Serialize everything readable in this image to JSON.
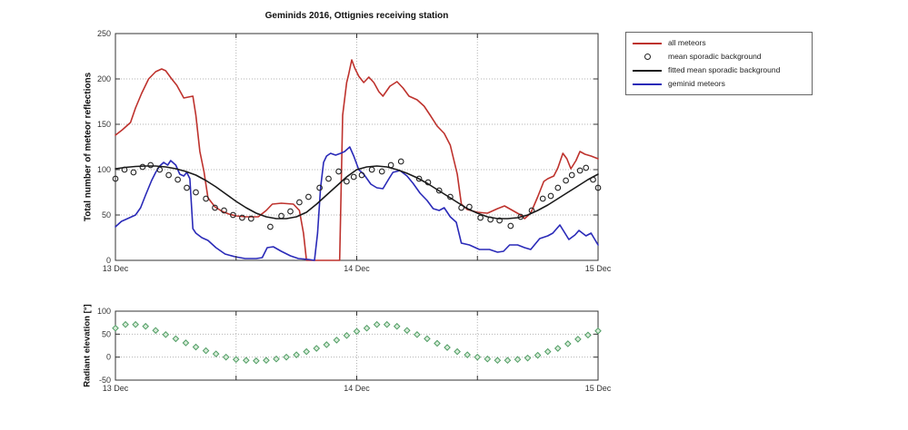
{
  "legend": {
    "items": [
      {
        "label": "all meteors",
        "type": "line",
        "color": "#be322d"
      },
      {
        "label": "mean sporadic background",
        "type": "circle",
        "color": "#222222"
      },
      {
        "label": "fitted mean sporadic background",
        "type": "line",
        "color": "#1a1a1a"
      },
      {
        "label": "geminid meteors",
        "type": "line",
        "color": "#2a2ab8"
      }
    ]
  },
  "chart_data": [
    {
      "id": "main",
      "type": "line",
      "title": "Geminids 2016, Ottignies receiving station",
      "ylabel": "Total number of meteor reflections",
      "xlabel": "",
      "x_unit": "hours since 13 Dec 00:00",
      "xlim_hours": [
        0,
        48
      ],
      "ylim": [
        0,
        250
      ],
      "yticks": [
        0,
        50,
        100,
        150,
        200,
        250
      ],
      "xticks": [
        {
          "h": 0,
          "label": "13 Dec"
        },
        {
          "h": 12,
          "label": ""
        },
        {
          "h": 24,
          "label": "14 Dec"
        },
        {
          "h": 36,
          "label": ""
        },
        {
          "h": 48,
          "label": "15 Dec"
        }
      ],
      "grid": true,
      "legend_position": "outside-right",
      "series": [
        {
          "name": "all meteors",
          "style": "line",
          "color": "#be322d",
          "points": [
            [
              0,
              138
            ],
            [
              0.7,
              144
            ],
            [
              1.5,
              152
            ],
            [
              2,
              168
            ],
            [
              2.6,
              184
            ],
            [
              3.3,
              200
            ],
            [
              4,
              208
            ],
            [
              4.6,
              211
            ],
            [
              5,
              209
            ],
            [
              5.6,
              200
            ],
            [
              6.1,
              193
            ],
            [
              6.8,
              179
            ],
            [
              7.7,
              181
            ],
            [
              8,
              160
            ],
            [
              8.4,
              120
            ],
            [
              8.8,
              98
            ],
            [
              9.2,
              69
            ],
            [
              9.9,
              59
            ],
            [
              10.6,
              54
            ],
            [
              11.3,
              51
            ],
            [
              12,
              49
            ],
            [
              13,
              48
            ],
            [
              14.2,
              48
            ],
            [
              15,
              55
            ],
            [
              15.6,
              62
            ],
            [
              16.5,
              63
            ],
            [
              17.7,
              62
            ],
            [
              18.3,
              55
            ],
            [
              18.7,
              30
            ],
            [
              19,
              0
            ],
            [
              22.3,
              0
            ],
            [
              22.6,
              160
            ],
            [
              23,
              196
            ],
            [
              23.2,
              205
            ],
            [
              23.5,
              221
            ],
            [
              23.8,
              212
            ],
            [
              24.2,
              203
            ],
            [
              24.7,
              196
            ],
            [
              25.2,
              202
            ],
            [
              25.7,
              196
            ],
            [
              26.2,
              186
            ],
            [
              26.6,
              181
            ],
            [
              27.3,
              192
            ],
            [
              28,
              197
            ],
            [
              28.6,
              190
            ],
            [
              29.2,
              181
            ],
            [
              30,
              177
            ],
            [
              30.7,
              170
            ],
            [
              31.3,
              160
            ],
            [
              32,
              148
            ],
            [
              32.7,
              140
            ],
            [
              33.3,
              127
            ],
            [
              34,
              95
            ],
            [
              34.4,
              62
            ],
            [
              35,
              56
            ],
            [
              36,
              53
            ],
            [
              37,
              52
            ],
            [
              38,
              57
            ],
            [
              38.7,
              60
            ],
            [
              39.5,
              55
            ],
            [
              40.3,
              50
            ],
            [
              40.7,
              46
            ],
            [
              41.3,
              52
            ],
            [
              42,
              70
            ],
            [
              42.6,
              87
            ],
            [
              43,
              90
            ],
            [
              43.6,
              93
            ],
            [
              44,
              102
            ],
            [
              44.5,
              118
            ],
            [
              44.9,
              112
            ],
            [
              45.3,
              101
            ],
            [
              45.8,
              110
            ],
            [
              46.2,
              120
            ],
            [
              46.7,
              117
            ],
            [
              47.3,
              115
            ],
            [
              48,
              112
            ]
          ]
        },
        {
          "name": "geminid meteors",
          "style": "line",
          "color": "#2a2ab8",
          "points": [
            [
              0,
              37
            ],
            [
              0.6,
              43
            ],
            [
              1,
              45
            ],
            [
              1.6,
              48
            ],
            [
              2,
              50
            ],
            [
              2.5,
              58
            ],
            [
              3,
              72
            ],
            [
              3.6,
              88
            ],
            [
              4,
              97
            ],
            [
              4.4,
              104
            ],
            [
              4.8,
              108
            ],
            [
              5.2,
              105
            ],
            [
              5.5,
              110
            ],
            [
              6,
              105
            ],
            [
              6.4,
              95
            ],
            [
              6.8,
              93
            ],
            [
              7.1,
              97
            ],
            [
              7.4,
              90
            ],
            [
              7.7,
              35
            ],
            [
              8,
              30
            ],
            [
              8.6,
              25
            ],
            [
              9.2,
              22
            ],
            [
              10,
              14
            ],
            [
              10.9,
              7
            ],
            [
              11.9,
              4
            ],
            [
              12.9,
              2
            ],
            [
              14,
              2
            ],
            [
              14.6,
              3
            ],
            [
              15.1,
              14
            ],
            [
              15.7,
              15
            ],
            [
              16.5,
              10
            ],
            [
              17.4,
              5
            ],
            [
              18.2,
              2
            ],
            [
              19.2,
              1
            ],
            [
              19.8,
              0
            ],
            [
              20.1,
              30
            ],
            [
              20.4,
              80
            ],
            [
              20.7,
              108
            ],
            [
              21,
              115
            ],
            [
              21.4,
              118
            ],
            [
              21.9,
              116
            ],
            [
              22.4,
              118
            ],
            [
              22.8,
              120
            ],
            [
              23.3,
              125
            ],
            [
              23.7,
              115
            ],
            [
              24.2,
              100
            ],
            [
              24.7,
              95
            ],
            [
              25.4,
              84
            ],
            [
              26,
              80
            ],
            [
              26.6,
              79
            ],
            [
              27.2,
              90
            ],
            [
              27.6,
              97
            ],
            [
              28.3,
              99
            ],
            [
              29,
              93
            ],
            [
              29.6,
              85
            ],
            [
              30.3,
              74
            ],
            [
              31,
              66
            ],
            [
              31.6,
              57
            ],
            [
              32.2,
              55
            ],
            [
              32.7,
              58
            ],
            [
              33.3,
              48
            ],
            [
              33.9,
              42
            ],
            [
              34.4,
              19
            ],
            [
              35.2,
              17
            ],
            [
              36.2,
              12
            ],
            [
              37.2,
              12
            ],
            [
              38,
              9
            ],
            [
              38.6,
              10
            ],
            [
              39.2,
              17
            ],
            [
              40,
              17
            ],
            [
              40.7,
              14
            ],
            [
              41.3,
              12
            ],
            [
              42.2,
              24
            ],
            [
              43,
              27
            ],
            [
              43.5,
              30
            ],
            [
              44.2,
              39
            ],
            [
              45.1,
              23
            ],
            [
              45.7,
              28
            ],
            [
              46.1,
              33
            ],
            [
              46.8,
              27
            ],
            [
              47.3,
              30
            ],
            [
              48,
              17
            ]
          ]
        },
        {
          "name": "mean sporadic background",
          "style": "circle",
          "color": "#222222",
          "points": [
            [
              0,
              90
            ],
            [
              0.9,
              100
            ],
            [
              1.8,
              97
            ],
            [
              2.7,
              103
            ],
            [
              3.5,
              105
            ],
            [
              4.4,
              100
            ],
            [
              5.3,
              94
            ],
            [
              6.2,
              89
            ],
            [
              7.1,
              80
            ],
            [
              8,
              75
            ],
            [
              9,
              68
            ],
            [
              9.9,
              58
            ],
            [
              10.8,
              55
            ],
            [
              11.7,
              50
            ],
            [
              12.6,
              47
            ],
            [
              13.5,
              46
            ],
            [
              15.4,
              37
            ],
            [
              16.5,
              49
            ],
            [
              17.4,
              54
            ],
            [
              18.3,
              64
            ],
            [
              19.2,
              70
            ],
            [
              20.3,
              80
            ],
            [
              21.2,
              90
            ],
            [
              22.2,
              98
            ],
            [
              23,
              87
            ],
            [
              23.7,
              92
            ],
            [
              24.5,
              94
            ],
            [
              25.5,
              100
            ],
            [
              26.5,
              98
            ],
            [
              27.4,
              105
            ],
            [
              28.4,
              109
            ],
            [
              30.2,
              90
            ],
            [
              31.1,
              86
            ],
            [
              32.2,
              77
            ],
            [
              33.3,
              70
            ],
            [
              34.4,
              58
            ],
            [
              35.2,
              59
            ],
            [
              36.3,
              47
            ],
            [
              37.3,
              45
            ],
            [
              38.2,
              44
            ],
            [
              39.3,
              38
            ],
            [
              40.3,
              48
            ],
            [
              41.4,
              55
            ],
            [
              42.5,
              68
            ],
            [
              43.3,
              71
            ],
            [
              44,
              80
            ],
            [
              44.8,
              88
            ],
            [
              45.4,
              94
            ],
            [
              46.2,
              99
            ],
            [
              46.8,
              102
            ],
            [
              47.5,
              89
            ],
            [
              48,
              80
            ]
          ]
        },
        {
          "name": "fitted mean sporadic background",
          "style": "line",
          "color": "#1a1a1a",
          "values": [
            101,
            102.5,
            103.5,
            104,
            104,
            103,
            101,
            98,
            94,
            88,
            81,
            73,
            65,
            58,
            52,
            48,
            46,
            46,
            48,
            53,
            62,
            72,
            82,
            92,
            100,
            103,
            104,
            103,
            100,
            96,
            91,
            85,
            78,
            71,
            64,
            57,
            52,
            48,
            46,
            46,
            47,
            50,
            55,
            61,
            68,
            75,
            82,
            89,
            95
          ]
        }
      ]
    },
    {
      "id": "elevation",
      "type": "scatter",
      "title": "",
      "ylabel": "Radiant elevation [°]",
      "xlabel": "",
      "x_unit": "hours since 13 Dec 00:00",
      "xlim_hours": [
        0,
        48
      ],
      "ylim": [
        -50,
        100
      ],
      "yticks": [
        -50,
        0,
        50,
        100
      ],
      "xticks": [
        {
          "h": 0,
          "label": "13 Dec"
        },
        {
          "h": 12,
          "label": ""
        },
        {
          "h": 24,
          "label": "14 Dec"
        },
        {
          "h": 36,
          "label": ""
        },
        {
          "h": 48,
          "label": "15 Dec"
        }
      ],
      "grid": true,
      "series": [
        {
          "name": "radiant elevation",
          "style": "diamond",
          "color": "#4f9c63",
          "fill": "#d8ecd9",
          "values": [
            63,
            71,
            71,
            67,
            58,
            49,
            40,
            31,
            22,
            14,
            7,
            0,
            -5,
            -7,
            -8,
            -7,
            -4,
            0,
            5,
            12,
            19,
            27,
            37,
            47,
            56,
            63,
            71,
            71,
            67,
            58,
            49,
            40,
            30,
            21,
            12,
            5,
            0,
            -4,
            -7,
            -7,
            -5,
            -2,
            4,
            12,
            19,
            29,
            39,
            48,
            57
          ]
        }
      ]
    }
  ]
}
